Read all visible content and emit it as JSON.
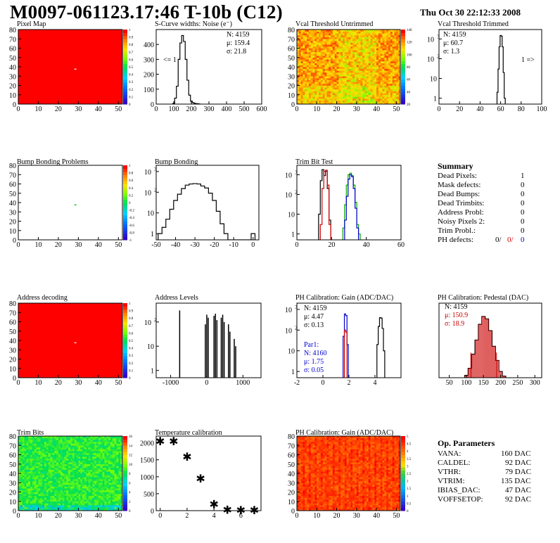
{
  "header": {
    "title": "M0097-061123.17:46 T-10b (C12)",
    "date": "Thu Oct 30 22:12:33 2008"
  },
  "panels": {
    "pixel_map": {
      "title": "Pixel Map",
      "zscale": [
        "1",
        "0.9",
        "0.8",
        "0.7",
        "0.6",
        "0.5",
        "0.4",
        "0.3",
        "0.2",
        "0.1",
        "0"
      ]
    },
    "noise": {
      "title": "S-Curve widths: Noise (e⁻)",
      "stats": [
        "N: 4159",
        "μ: 159.4",
        "σ: 21.8"
      ],
      "underflow": "<= 1"
    },
    "vcal_untrimmed": {
      "title": "Vcal Threshold Untrimmed",
      "zscale": [
        "140",
        "120",
        "100",
        "80",
        "60",
        "40",
        "20"
      ]
    },
    "vcal_trimmed": {
      "title": "Vcal Threshold Trimmed",
      "stats": [
        "N: 4159",
        "μ: 60.7",
        "σ:  1.3"
      ],
      "overflow": "1 =>"
    },
    "bump_problems": {
      "title": "Bump Bonding Problems",
      "zscale": [
        "1",
        "0.8",
        "0.6",
        "0.4",
        "0.2",
        "0",
        "-0.2",
        "-0.4",
        "-0.6",
        "-0.8",
        "-1"
      ]
    },
    "bump_bonding": {
      "title": "Bump Bonding"
    },
    "trim_bit_test": {
      "title": "Trim Bit Test"
    },
    "address_decoding": {
      "title": "Address decoding",
      "zscale": [
        "1",
        "0.9",
        "0.8",
        "0.7",
        "0.6",
        "0.5",
        "0.4",
        "0.3",
        "0.2",
        "0.1",
        "0"
      ]
    },
    "address_levels": {
      "title": "Address Levels"
    },
    "ph_gain": {
      "title": "PH Calibration: Gain (ADC/DAC)",
      "stats": [
        "N: 4159",
        "μ: 4.47",
        "σ: 0.13"
      ],
      "stats2_title": "Par1:",
      "stats2": [
        "N: 4160",
        "μ: 1.75",
        "σ: 0.05"
      ]
    },
    "ph_pedestal": {
      "title": "PH Calibration: Pedestal (DAC)",
      "stats": [
        "N: 4159",
        "μ: 150.9",
        "σ: 18.9"
      ]
    },
    "trim_bits": {
      "title": "Trim Bits",
      "zscale": [
        "16",
        "14",
        "12",
        "10",
        "8",
        "6",
        "4",
        "2",
        "0"
      ]
    },
    "temp_cal": {
      "title": "Temperature calibration"
    },
    "ph_gain_map": {
      "title": "PH Calibration: Gain (ADC/DAC)",
      "zscale": [
        "5",
        "4.5",
        "4",
        "3.5",
        "3",
        "2.5",
        "2",
        "1.5",
        "1",
        "0.5",
        "0"
      ]
    }
  },
  "summary": {
    "title": "Summary",
    "rows": [
      {
        "label": "Dead Pixels:",
        "value": "1"
      },
      {
        "label": "Mask defects:",
        "value": "0"
      },
      {
        "label": "Dead Bumps:",
        "value": "0"
      },
      {
        "label": "Dead Trimbits:",
        "value": "0"
      },
      {
        "label": "Address Probl:",
        "value": "0"
      },
      {
        "label": "Noisy Pixels 2:",
        "value": "0"
      },
      {
        "label": "Trim Probl.:",
        "value": "0"
      }
    ],
    "ph_defects": {
      "label": "PH defects:",
      "v1": "0/",
      "v2": "0/",
      "v3": "0",
      "c2": "#cc0000",
      "c3": "#0000cc"
    }
  },
  "op_params": {
    "title": "Op. Parameters",
    "rows": [
      {
        "label": "VANA:",
        "value": "160 DAC"
      },
      {
        "label": "CALDEL:",
        "value": "92 DAC"
      },
      {
        "label": "VTHR:",
        "value": "79 DAC"
      },
      {
        "label": "VTRIM:",
        "value": "135 DAC"
      },
      {
        "label": "IBIAS_DAC:",
        "value": "47 DAC"
      },
      {
        "label": "VOFFSETOP:",
        "value": "92 DAC"
      }
    ]
  },
  "chart_data": [
    {
      "id": "pixel_map",
      "type": "heatmap",
      "title": "Pixel Map",
      "xlim": [
        0,
        52
      ],
      "ylim": [
        0,
        80
      ],
      "xticks": [
        0,
        10,
        20,
        30,
        40,
        50
      ],
      "yticks": [
        0,
        10,
        20,
        30,
        40,
        50,
        60,
        70,
        80
      ],
      "fill": "#ff0000",
      "zlim": [
        0,
        1
      ]
    },
    {
      "id": "noise",
      "type": "histogram",
      "title": "S-Curve widths: Noise (e⁻)",
      "xlim": [
        0,
        600
      ],
      "ylim": [
        0,
        500
      ],
      "xticks": [
        0,
        100,
        200,
        300,
        400,
        500,
        600
      ],
      "yticks": [
        0,
        100,
        200,
        300,
        400
      ],
      "series": [
        {
          "color": "#000000",
          "x": [
            100,
            110,
            120,
            130,
            140,
            150,
            160,
            170,
            180,
            190,
            200,
            210,
            220,
            230,
            240,
            250
          ],
          "values": [
            5,
            40,
            120,
            300,
            410,
            460,
            420,
            300,
            160,
            60,
            20,
            10,
            5,
            3,
            2,
            0
          ]
        }
      ]
    },
    {
      "id": "vcal_untrimmed",
      "type": "heatmap",
      "title": "Vcal Threshold Untrimmed",
      "xlim": [
        0,
        52
      ],
      "ylim": [
        0,
        80
      ],
      "xticks": [
        0,
        10,
        20,
        30,
        40,
        50
      ],
      "yticks": [
        0,
        10,
        20,
        30,
        40,
        50,
        60,
        70,
        80
      ],
      "zlim": [
        0,
        150
      ]
    },
    {
      "id": "vcal_trimmed",
      "type": "histogram",
      "title": "Vcal Threshold Trimmed",
      "log": true,
      "xlim": [
        0,
        100
      ],
      "ylim": [
        0.5,
        3000
      ],
      "xticks": [
        0,
        20,
        40,
        60,
        80,
        100
      ],
      "yticks": [
        1,
        10,
        100,
        1000
      ],
      "series": [
        {
          "color": "#000000",
          "x": [
            57,
            58,
            59,
            60,
            61,
            62,
            63,
            64
          ],
          "values": [
            2,
            30,
            400,
            1500,
            1400,
            400,
            20,
            1
          ]
        }
      ]
    },
    {
      "id": "bump_problems",
      "type": "heatmap",
      "title": "Bump Bonding Problems",
      "xlim": [
        0,
        52
      ],
      "ylim": [
        0,
        80
      ],
      "xticks": [
        0,
        10,
        20,
        30,
        40,
        50
      ],
      "yticks": [
        0,
        10,
        20,
        30,
        40,
        50,
        60,
        70,
        80
      ],
      "zlim": [
        -1,
        1
      ]
    },
    {
      "id": "bump_bonding",
      "type": "histogram",
      "title": "Bump Bonding",
      "log": true,
      "xlim": [
        -50,
        3
      ],
      "ylim": [
        0.5,
        2000
      ],
      "xticks": [
        -50,
        -40,
        -30,
        -20,
        -10,
        0
      ],
      "yticks": [
        1,
        10,
        100,
        1000
      ],
      "series": [
        {
          "color": "#000000",
          "x": [
            -48,
            -46,
            -44,
            -42,
            -40,
            -38,
            -36,
            -34,
            -32,
            -30,
            -28,
            -26,
            -24,
            -22,
            -20,
            -18,
            -16,
            -14,
            -12,
            -10,
            -8,
            -6,
            -4,
            -2,
            0
          ],
          "values": [
            1,
            2,
            5,
            15,
            40,
            80,
            150,
            220,
            250,
            260,
            250,
            200,
            160,
            90,
            40,
            12,
            3,
            1,
            0,
            0,
            0,
            0,
            0,
            0,
            1
          ]
        }
      ]
    },
    {
      "id": "trim_bit_test",
      "type": "histogram",
      "title": "Trim Bit Test",
      "log": true,
      "xlim": [
        0,
        60
      ],
      "ylim": [
        0.5,
        3000
      ],
      "xticks": [
        0,
        20,
        40,
        60
      ],
      "yticks": [
        1,
        10,
        100,
        1000
      ],
      "series": [
        {
          "color": "#000000",
          "x": [
            13,
            14,
            15,
            16,
            17,
            18,
            19
          ],
          "values": [
            10,
            500,
            1800,
            900,
            1500,
            200,
            5
          ]
        },
        {
          "color": "#cc0000",
          "x": [
            14,
            15,
            16,
            17,
            18,
            19
          ],
          "values": [
            3,
            200,
            1500,
            1700,
            300,
            3
          ]
        },
        {
          "color": "#00aa00",
          "x": [
            27,
            28,
            29,
            30,
            31,
            32,
            33,
            34,
            35,
            36
          ],
          "values": [
            2,
            30,
            300,
            1000,
            1200,
            900,
            300,
            40,
            3,
            1
          ]
        },
        {
          "color": "#0000cc",
          "x": [
            28,
            29,
            30,
            31,
            32,
            33,
            34,
            35
          ],
          "values": [
            5,
            80,
            600,
            1000,
            800,
            200,
            20,
            2
          ]
        }
      ]
    },
    {
      "id": "address_decoding",
      "type": "heatmap",
      "title": "Address decoding",
      "xlim": [
        0,
        52
      ],
      "ylim": [
        0,
        80
      ],
      "xticks": [
        0,
        10,
        20,
        30,
        40,
        50
      ],
      "yticks": [
        0,
        10,
        20,
        30,
        40,
        50,
        60,
        70,
        80
      ],
      "fill": "#ff0000",
      "zlim": [
        0,
        1
      ]
    },
    {
      "id": "address_levels",
      "type": "histogram",
      "title": "Address Levels",
      "log": true,
      "xlim": [
        -1400,
        1500
      ],
      "ylim": [
        0.5,
        600
      ],
      "xticks": [
        -1000,
        0,
        1000
      ],
      "yticks": [
        1,
        10,
        100
      ],
      "series": [
        {
          "color": "#000000",
          "x": [
            -750,
            -40,
            0,
            40,
            200,
            240,
            280,
            400,
            440,
            480,
            600,
            640,
            760,
            800
          ],
          "values": [
            300,
            80,
            200,
            150,
            180,
            220,
            120,
            150,
            200,
            100,
            80,
            40,
            20,
            10
          ]
        }
      ]
    },
    {
      "id": "ph_gain",
      "type": "histogram",
      "title": "PH Calibration: Gain (ADC/DAC)",
      "log": true,
      "xlim": [
        -2,
        6
      ],
      "ylim": [
        0.5,
        2000
      ],
      "xticks": [
        -2,
        0,
        2,
        4
      ],
      "yticks": [
        1,
        10,
        100,
        1000
      ],
      "series": [
        {
          "color": "#000000",
          "x": [
            4.2,
            4.3,
            4.4,
            4.5,
            4.6,
            4.7
          ],
          "values": [
            20,
            150,
            400,
            380,
            120,
            10
          ]
        },
        {
          "color": "#0000cc",
          "x": [
            1.6,
            1.7,
            1.8,
            1.9
          ],
          "values": [
            50,
            600,
            500,
            20
          ]
        },
        {
          "color": "#cc0000",
          "x": [
            1.7,
            1.8
          ],
          "values": [
            100,
            80
          ]
        }
      ]
    },
    {
      "id": "ph_pedestal",
      "type": "histogram",
      "title": "PH Calibration: Pedestal (DAC)",
      "xlim": [
        20,
        320
      ],
      "ylim": [
        0,
        95
      ],
      "xticks": [
        50,
        100,
        150,
        200,
        250,
        300
      ],
      "series": [
        {
          "color": "#000000",
          "x": [
            100,
            110,
            120,
            130,
            140,
            150,
            160,
            170,
            180,
            190,
            200,
            210
          ],
          "values": [
            3,
            12,
            30,
            48,
            68,
            78,
            75,
            60,
            40,
            22,
            8,
            2
          ]
        }
      ]
    },
    {
      "id": "trim_bits",
      "type": "heatmap",
      "title": "Trim Bits",
      "xlim": [
        0,
        52
      ],
      "ylim": [
        0,
        80
      ],
      "xticks": [
        0,
        10,
        20,
        30,
        40,
        50
      ],
      "yticks": [
        0,
        10,
        20,
        30,
        40,
        50,
        60,
        70,
        80
      ],
      "zlim": [
        0,
        16
      ]
    },
    {
      "id": "temp_cal",
      "type": "scatter",
      "title": "Temperature calibration",
      "xlim": [
        -0.3,
        7.5
      ],
      "ylim": [
        0,
        2200
      ],
      "xticks": [
        0,
        2,
        4,
        6
      ],
      "yticks": [
        0,
        500,
        1000,
        1500,
        2000
      ],
      "series": [
        {
          "color": "#000000",
          "x": [
            0,
            1,
            2,
            3,
            4,
            5,
            6,
            7
          ],
          "y": [
            2050,
            2050,
            1600,
            950,
            200,
            30,
            20,
            20
          ]
        }
      ]
    },
    {
      "id": "ph_gain_map",
      "type": "heatmap",
      "title": "PH Calibration: Gain (ADC/DAC)",
      "xlim": [
        0,
        52
      ],
      "ylim": [
        0,
        80
      ],
      "xticks": [
        0,
        10,
        20,
        30,
        40,
        50
      ],
      "yticks": [
        0,
        10,
        20,
        30,
        40,
        50,
        60,
        70,
        80
      ],
      "zlim": [
        0,
        5
      ]
    }
  ]
}
